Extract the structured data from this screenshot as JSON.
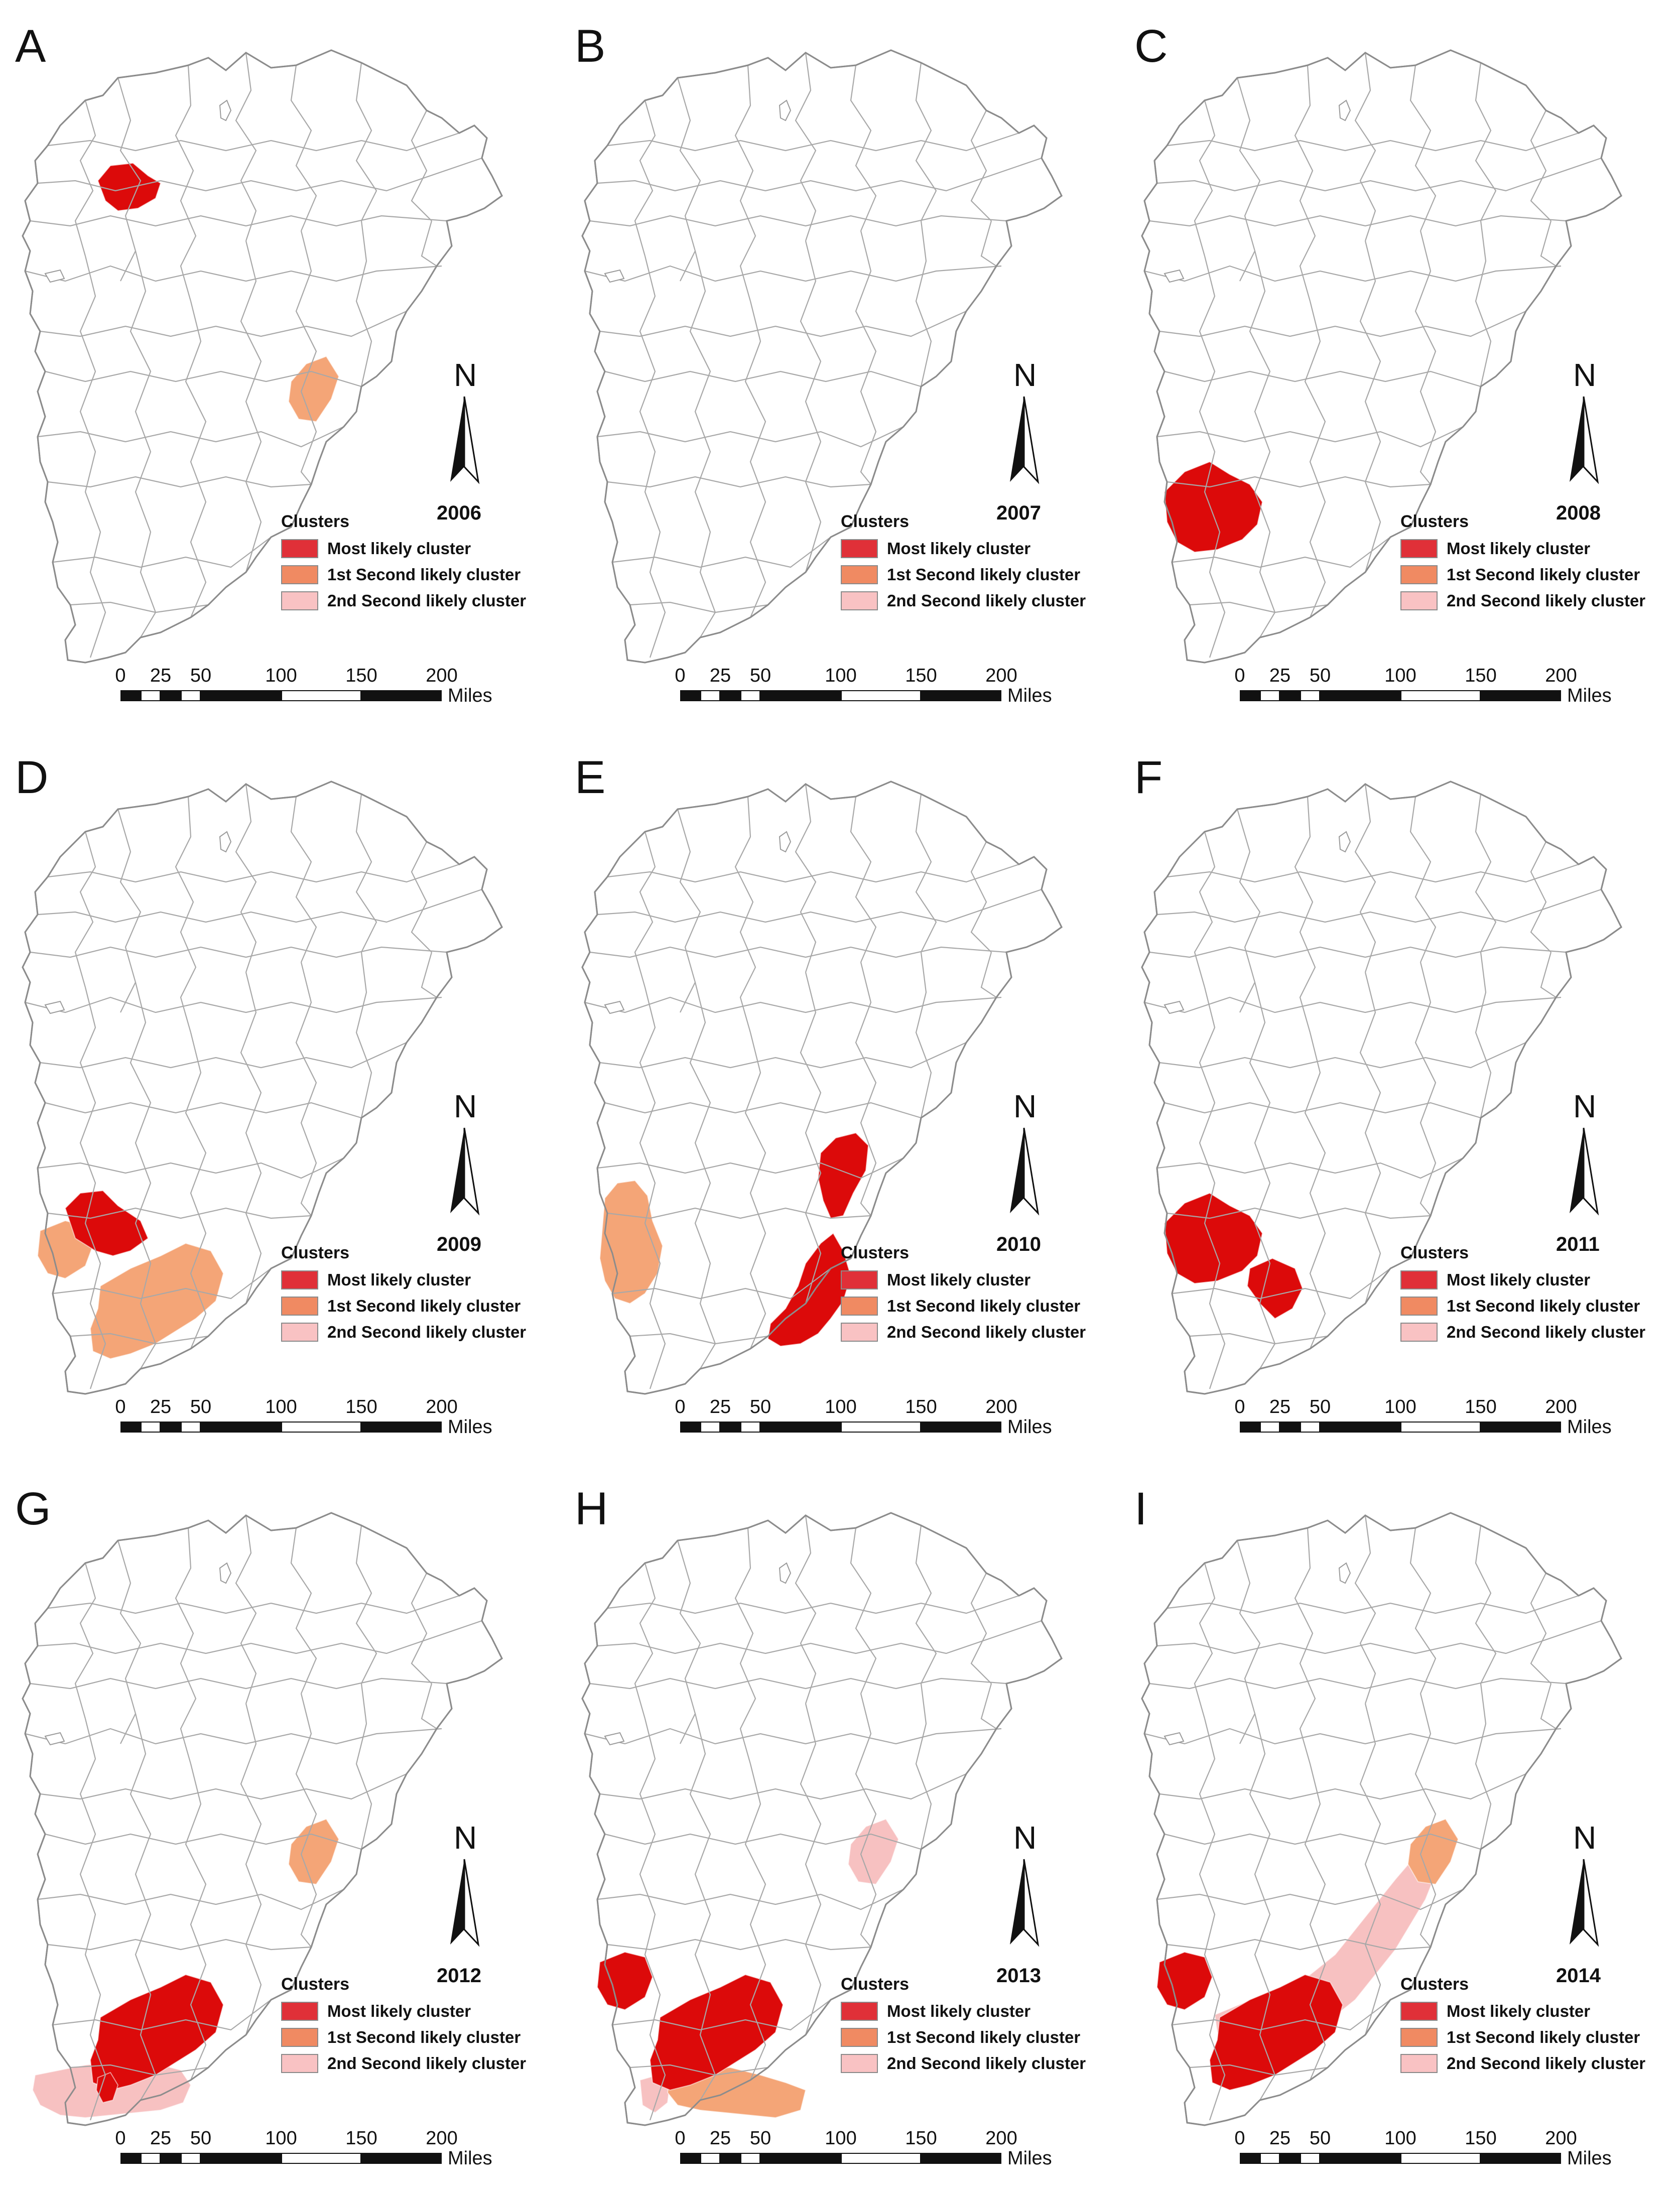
{
  "legend": {
    "title": "Clusters",
    "items": [
      {
        "label": "Most likely cluster",
        "color": "#e03038"
      },
      {
        "label": "1st Second likely cluster",
        "color": "#f08a62"
      },
      {
        "label": "2nd Second likely cluster",
        "color": "#f9c2c3"
      }
    ]
  },
  "scale_bar": {
    "ticks": [
      "0",
      "25",
      "50",
      "100",
      "150",
      "200"
    ],
    "units": "Miles"
  },
  "north_label": "N",
  "fill_colors": {
    "most": "#dc0a0a",
    "first": "#f4a577",
    "second": "#f7c1c1",
    "boundary": "#8c8c8c"
  },
  "panels": [
    {
      "letter": "A",
      "year": "2006",
      "clusters": {
        "most": [
          "nw-small"
        ],
        "first": [
          "east-small"
        ],
        "second": []
      }
    },
    {
      "letter": "B",
      "year": "2007",
      "clusters": {
        "most": [],
        "first": [],
        "second": []
      }
    },
    {
      "letter": "C",
      "year": "2008",
      "clusters": {
        "most": [
          "sw-block"
        ],
        "first": [],
        "second": []
      }
    },
    {
      "letter": "D",
      "year": "2009",
      "clusters": {
        "most": [
          "sw-upper"
        ],
        "first": [
          "sw-west",
          "south-block"
        ],
        "second": []
      }
    },
    {
      "letter": "E",
      "year": "2010",
      "clusters": {
        "most": [
          "mid-east",
          "south-central"
        ],
        "first": [
          "west-strip"
        ],
        "second": []
      }
    },
    {
      "letter": "F",
      "year": "2011",
      "clusters": {
        "most": [
          "sw-block",
          "sw-south-ext"
        ],
        "first": [],
        "second": []
      }
    },
    {
      "letter": "G",
      "year": "2012",
      "clusters": {
        "most": [
          "south-block",
          "sw-dot"
        ],
        "first": [
          "east-small"
        ],
        "second": [
          "sw-wide"
        ]
      }
    },
    {
      "letter": "H",
      "year": "2013",
      "clusters": {
        "most": [
          "sw-west",
          "south-block"
        ],
        "first": [
          "sw-band"
        ],
        "second": [
          "east-small",
          "sw-notch"
        ]
      }
    },
    {
      "letter": "I",
      "year": "2014",
      "clusters": {
        "most": [
          "sw-west",
          "south-block"
        ],
        "first": [
          "east-small"
        ],
        "second": [
          "diag-band"
        ]
      }
    }
  ]
}
